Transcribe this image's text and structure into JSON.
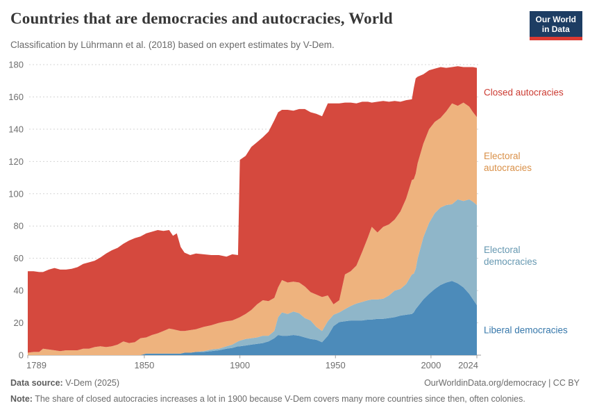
{
  "header": {
    "title": "Countries that are democracies and autocracies, World",
    "subtitle": "Classification by Lührmann et al. (2018) based on expert estimates by V-Dem.",
    "logo_line1": "Our World",
    "logo_line2": "in Data",
    "logo_bg": "#1d3d63",
    "logo_stripe": "#dc3a32"
  },
  "footer": {
    "datasource_label": "Data source:",
    "datasource_value": " V-Dem (2025)",
    "link": "OurWorldinData.org/democracy",
    "separator": " | ",
    "license": "CC BY",
    "note_label": "Note:",
    "note_text": " The share of closed autocracies increases a lot in 1900 because V-Dem covers many more countries since then, often colonies."
  },
  "chart_data": {
    "type": "area",
    "stacked": true,
    "title": "Countries that are democracies and autocracies, World",
    "xlabel": "",
    "ylabel": "",
    "xlim": [
      1789,
      2024
    ],
    "ylim": [
      0,
      180
    ],
    "grid": true,
    "legend_position": "right-edge-labels",
    "y_ticks": [
      0,
      20,
      40,
      60,
      80,
      100,
      120,
      140,
      160,
      180
    ],
    "x_ticks": [
      1789,
      1850,
      1900,
      1950,
      2000,
      2024
    ],
    "x": [
      1789,
      1792,
      1795,
      1797,
      1800,
      1803,
      1806,
      1809,
      1812,
      1815,
      1818,
      1821,
      1824,
      1827,
      1830,
      1833,
      1836,
      1839,
      1842,
      1845,
      1848,
      1851,
      1854,
      1857,
      1860,
      1863,
      1865,
      1867,
      1869,
      1871,
      1874,
      1877,
      1881,
      1885,
      1889,
      1893,
      1896,
      1899,
      1900,
      1903,
      1906,
      1909,
      1912,
      1915,
      1918,
      1920,
      1922,
      1925,
      1928,
      1931,
      1934,
      1937,
      1940,
      1943,
      1946,
      1949,
      1952,
      1955,
      1958,
      1961,
      1964,
      1967,
      1969,
      1972,
      1975,
      1978,
      1981,
      1984,
      1987,
      1990,
      1991,
      1992,
      1993,
      1996,
      1999,
      2002,
      2005,
      2008,
      2011,
      2014,
      2017,
      2020,
      2022,
      2024
    ],
    "series": [
      {
        "name": "Liberal democracies",
        "label_lines": [
          "Liberal democracies"
        ],
        "color": "#4c8bba",
        "label_color": "#3778ab",
        "values": [
          0,
          0,
          0,
          0,
          0,
          0,
          0,
          0,
          0,
          0,
          0,
          0,
          0,
          0,
          0,
          0,
          0,
          0,
          0,
          0,
          0,
          1,
          1,
          1,
          1,
          1,
          1,
          1,
          1,
          1.5,
          1.5,
          2,
          2,
          2.5,
          3,
          4,
          4.5,
          5.5,
          5.5,
          6,
          6.5,
          7,
          7.5,
          8.5,
          10.5,
          12.5,
          12,
          12,
          12.5,
          12,
          11,
          10,
          9.5,
          8,
          12,
          18,
          20.5,
          21,
          21.5,
          21.5,
          21.5,
          22,
          22,
          22.5,
          22.5,
          23,
          23.5,
          24.5,
          25,
          25.5,
          26.5,
          28.5,
          30,
          34.5,
          38,
          41,
          43.5,
          45,
          46,
          44.5,
          42,
          38,
          34.5,
          31
        ]
      },
      {
        "name": "Electoral democracies",
        "label_lines": [
          "Electoral",
          "democracies"
        ],
        "color": "#8fb6c9",
        "label_color": "#6698b1",
        "values": [
          0,
          0,
          0,
          0,
          0,
          0,
          0,
          0,
          0,
          0,
          0,
          0,
          0,
          0,
          0,
          0,
          0,
          0,
          0,
          0,
          0,
          0,
          0,
          0,
          0,
          0,
          0,
          0,
          0,
          0,
          0,
          0,
          0.5,
          1,
          1,
          1.5,
          2,
          3,
          3.5,
          4,
          4,
          4,
          4.5,
          3.5,
          4.5,
          11,
          14.5,
          13.5,
          14.5,
          14,
          12,
          11.5,
          8,
          7,
          9,
          7,
          6,
          7.5,
          9,
          10.5,
          11.5,
          12,
          12.5,
          12,
          12.5,
          14,
          16.5,
          16.5,
          19,
          24.5,
          24,
          25,
          30,
          38.5,
          44,
          47,
          48,
          48,
          47.5,
          52,
          53.5,
          58.5,
          60.5,
          62
        ]
      },
      {
        "name": "Electoral autocracies",
        "label_lines": [
          "Electoral",
          "autocracies"
        ],
        "color": "#eeb37e",
        "label_color": "#d99048",
        "values": [
          1.5,
          2,
          2,
          4,
          3.5,
          3,
          2.5,
          3,
          3,
          3,
          4,
          4,
          5,
          5.5,
          5,
          5.5,
          6.5,
          8.5,
          7.5,
          8,
          10.5,
          10,
          11.5,
          12.5,
          14,
          15.5,
          15,
          14.5,
          14,
          13.5,
          14,
          14,
          15,
          15,
          16,
          15.5,
          15,
          14.5,
          14.5,
          15.5,
          17.5,
          20.5,
          22,
          21.5,
          20.5,
          18.5,
          20,
          19.5,
          18.5,
          19,
          19.5,
          17.5,
          20,
          21,
          16,
          6.5,
          7.5,
          21.5,
          21.5,
          23.5,
          31,
          39,
          45,
          41.5,
          44.5,
          44,
          44,
          48,
          53,
          58.5,
          58.5,
          59,
          59,
          58,
          58,
          56.5,
          55.5,
          58,
          62.5,
          58,
          61,
          57.5,
          55.5,
          54.5
        ]
      },
      {
        "name": "Closed autocracies",
        "label_lines": [
          "Closed autocracies"
        ],
        "color": "#d5493e",
        "label_color": "#cc3c33",
        "values": [
          50.5,
          50,
          49.5,
          47.5,
          49.5,
          51,
          50.5,
          50,
          50.5,
          51.5,
          52.5,
          53.5,
          53.5,
          55,
          58,
          59.5,
          60,
          60.5,
          63.5,
          64.5,
          63,
          64.5,
          64,
          64,
          62,
          61,
          58,
          60,
          52,
          48.5,
          46.5,
          47,
          45,
          43.5,
          42,
          40,
          41,
          39,
          97.5,
          98,
          101,
          100.5,
          101,
          105,
          110,
          108.5,
          105.5,
          107,
          106,
          107.5,
          110,
          111.5,
          112,
          112,
          119,
          124.5,
          122,
          106.5,
          104.5,
          100.5,
          93,
          84,
          77,
          81,
          78,
          76,
          73.5,
          68,
          61,
          50,
          56.5,
          59,
          53.5,
          43,
          36.5,
          33,
          31.5,
          27,
          22.5,
          24.5,
          22,
          24.5,
          28,
          30.5
        ]
      }
    ],
    "axis_style": {
      "grid_color": "#d4d4d4",
      "zero_line_color": "#9e9e9e",
      "tick_color": "#9e9e9e",
      "tick_label_color": "#6e6e6e"
    }
  }
}
